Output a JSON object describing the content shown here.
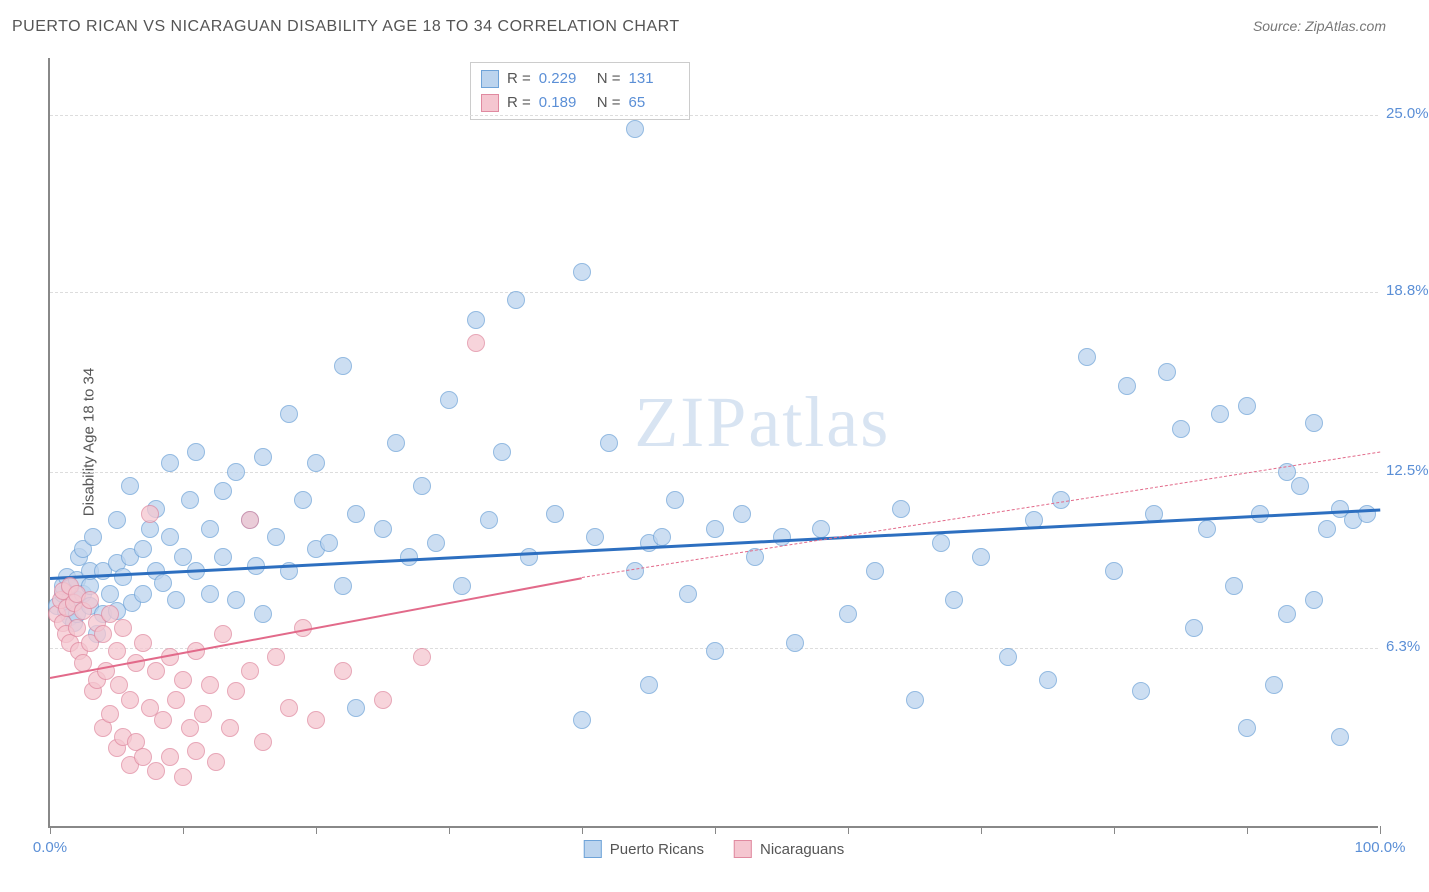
{
  "title": "PUERTO RICAN VS NICARAGUAN DISABILITY AGE 18 TO 34 CORRELATION CHART",
  "source_label": "Source:",
  "source_name": "ZipAtlas.com",
  "ylabel": "Disability Age 18 to 34",
  "watermark": "ZIPatlas",
  "chart": {
    "type": "scatter",
    "xlim": [
      0,
      100
    ],
    "ylim": [
      0,
      27
    ],
    "background_color": "#ffffff",
    "grid_color": "#dddddd",
    "axis_color": "#888888",
    "label_color": "#5b8fd6",
    "yticks": [
      {
        "v": 6.3,
        "label": "6.3%"
      },
      {
        "v": 12.5,
        "label": "12.5%"
      },
      {
        "v": 18.8,
        "label": "18.8%"
      },
      {
        "v": 25.0,
        "label": "25.0%"
      }
    ],
    "xticks": [
      0,
      10,
      20,
      30,
      40,
      50,
      60,
      70,
      80,
      90,
      100
    ],
    "xtick_labels": [
      {
        "v": 0,
        "label": "0.0%"
      },
      {
        "v": 100,
        "label": "100.0%"
      }
    ],
    "point_radius": 9,
    "series": [
      {
        "name": "Puerto Ricans",
        "fill": "#bcd4ee",
        "stroke": "#6fa3d8",
        "opacity": 0.75,
        "trend_color": "#2d6fc0",
        "trend_width": 2.5,
        "trend_solid": {
          "x1": 0,
          "y1": 8.8,
          "x2": 100,
          "y2": 11.2
        },
        "R": "0.229",
        "N": "131",
        "points": [
          [
            0.5,
            7.8
          ],
          [
            1,
            8.2
          ],
          [
            1,
            8.5
          ],
          [
            1.2,
            7.6
          ],
          [
            1.3,
            8.8
          ],
          [
            1.5,
            8.0
          ],
          [
            1.5,
            8.4
          ],
          [
            1.5,
            7.4
          ],
          [
            1.8,
            7.2
          ],
          [
            2,
            8.7
          ],
          [
            2,
            8.0
          ],
          [
            2,
            7.5
          ],
          [
            2.2,
            9.5
          ],
          [
            2.5,
            8.2
          ],
          [
            2.5,
            9.8
          ],
          [
            3,
            8.5
          ],
          [
            3,
            9.0
          ],
          [
            3,
            7.8
          ],
          [
            3.2,
            10.2
          ],
          [
            3.5,
            6.8
          ],
          [
            4,
            9.0
          ],
          [
            4,
            7.5
          ],
          [
            4.5,
            8.2
          ],
          [
            5,
            9.3
          ],
          [
            5,
            10.8
          ],
          [
            5,
            7.6
          ],
          [
            5.5,
            8.8
          ],
          [
            6,
            9.5
          ],
          [
            6,
            12.0
          ],
          [
            6.2,
            7.9
          ],
          [
            7,
            9.8
          ],
          [
            7,
            8.2
          ],
          [
            7.5,
            10.5
          ],
          [
            8,
            9.0
          ],
          [
            8,
            11.2
          ],
          [
            8.5,
            8.6
          ],
          [
            9,
            10.2
          ],
          [
            9,
            12.8
          ],
          [
            9.5,
            8.0
          ],
          [
            10,
            9.5
          ],
          [
            10.5,
            11.5
          ],
          [
            11,
            9.0
          ],
          [
            11,
            13.2
          ],
          [
            12,
            10.5
          ],
          [
            12,
            8.2
          ],
          [
            13,
            11.8
          ],
          [
            13,
            9.5
          ],
          [
            14,
            12.5
          ],
          [
            14,
            8.0
          ],
          [
            15,
            10.8
          ],
          [
            15.5,
            9.2
          ],
          [
            16,
            13.0
          ],
          [
            16,
            7.5
          ],
          [
            17,
            10.2
          ],
          [
            18,
            9.0
          ],
          [
            18,
            14.5
          ],
          [
            19,
            11.5
          ],
          [
            20,
            9.8
          ],
          [
            20,
            12.8
          ],
          [
            21,
            10.0
          ],
          [
            22,
            16.2
          ],
          [
            22,
            8.5
          ],
          [
            23,
            11.0
          ],
          [
            23,
            4.2
          ],
          [
            25,
            10.5
          ],
          [
            26,
            13.5
          ],
          [
            27,
            9.5
          ],
          [
            28,
            12.0
          ],
          [
            29,
            10.0
          ],
          [
            30,
            15.0
          ],
          [
            31,
            8.5
          ],
          [
            32,
            17.8
          ],
          [
            33,
            10.8
          ],
          [
            34,
            13.2
          ],
          [
            35,
            18.5
          ],
          [
            36,
            9.5
          ],
          [
            38,
            11.0
          ],
          [
            40,
            19.5
          ],
          [
            40,
            3.8
          ],
          [
            41,
            10.2
          ],
          [
            42,
            13.5
          ],
          [
            44,
            9.0
          ],
          [
            44,
            24.5
          ],
          [
            45,
            10.0
          ],
          [
            45,
            5.0
          ],
          [
            46,
            10.2
          ],
          [
            47,
            11.5
          ],
          [
            48,
            8.2
          ],
          [
            50,
            10.5
          ],
          [
            50,
            6.2
          ],
          [
            52,
            11.0
          ],
          [
            53,
            9.5
          ],
          [
            55,
            10.2
          ],
          [
            56,
            6.5
          ],
          [
            58,
            10.5
          ],
          [
            60,
            7.5
          ],
          [
            62,
            9.0
          ],
          [
            64,
            11.2
          ],
          [
            65,
            4.5
          ],
          [
            67,
            10.0
          ],
          [
            68,
            8.0
          ],
          [
            70,
            9.5
          ],
          [
            72,
            6.0
          ],
          [
            74,
            10.8
          ],
          [
            75,
            5.2
          ],
          [
            76,
            11.5
          ],
          [
            78,
            16.5
          ],
          [
            80,
            9.0
          ],
          [
            81,
            15.5
          ],
          [
            82,
            4.8
          ],
          [
            83,
            11.0
          ],
          [
            84,
            16.0
          ],
          [
            85,
            14.0
          ],
          [
            86,
            7.0
          ],
          [
            87,
            10.5
          ],
          [
            88,
            14.5
          ],
          [
            89,
            8.5
          ],
          [
            90,
            14.8
          ],
          [
            90,
            3.5
          ],
          [
            91,
            11.0
          ],
          [
            92,
            5.0
          ],
          [
            93,
            12.5
          ],
          [
            93,
            7.5
          ],
          [
            94,
            12.0
          ],
          [
            95,
            14.2
          ],
          [
            95,
            8.0
          ],
          [
            96,
            10.5
          ],
          [
            97,
            11.2
          ],
          [
            97,
            3.2
          ],
          [
            98,
            10.8
          ],
          [
            99,
            11.0
          ]
        ]
      },
      {
        "name": "Nicaraguans",
        "fill": "#f5c6d0",
        "stroke": "#e08aa0",
        "opacity": 0.75,
        "trend_color": "#e26a8a",
        "trend_width": 2,
        "trend_solid": {
          "x1": 0,
          "y1": 5.3,
          "x2": 40,
          "y2": 8.8
        },
        "trend_dashed": {
          "x1": 40,
          "y1": 8.8,
          "x2": 100,
          "y2": 13.2
        },
        "R": "0.189",
        "N": "65",
        "points": [
          [
            0.5,
            7.5
          ],
          [
            0.8,
            8.0
          ],
          [
            1,
            7.2
          ],
          [
            1,
            8.3
          ],
          [
            1.2,
            6.8
          ],
          [
            1.3,
            7.7
          ],
          [
            1.5,
            8.5
          ],
          [
            1.5,
            6.5
          ],
          [
            1.8,
            7.9
          ],
          [
            2,
            8.2
          ],
          [
            2,
            7.0
          ],
          [
            2.2,
            6.2
          ],
          [
            2.5,
            7.6
          ],
          [
            2.5,
            5.8
          ],
          [
            3,
            8.0
          ],
          [
            3,
            6.5
          ],
          [
            3.2,
            4.8
          ],
          [
            3.5,
            7.2
          ],
          [
            3.5,
            5.2
          ],
          [
            4,
            6.8
          ],
          [
            4,
            3.5
          ],
          [
            4.2,
            5.5
          ],
          [
            4.5,
            7.5
          ],
          [
            4.5,
            4.0
          ],
          [
            5,
            6.2
          ],
          [
            5,
            2.8
          ],
          [
            5.2,
            5.0
          ],
          [
            5.5,
            7.0
          ],
          [
            5.5,
            3.2
          ],
          [
            6,
            4.5
          ],
          [
            6,
            2.2
          ],
          [
            6.5,
            5.8
          ],
          [
            6.5,
            3.0
          ],
          [
            7,
            6.5
          ],
          [
            7,
            2.5
          ],
          [
            7.5,
            4.2
          ],
          [
            7.5,
            11.0
          ],
          [
            8,
            5.5
          ],
          [
            8,
            2.0
          ],
          [
            8.5,
            3.8
          ],
          [
            9,
            6.0
          ],
          [
            9,
            2.5
          ],
          [
            9.5,
            4.5
          ],
          [
            10,
            5.2
          ],
          [
            10,
            1.8
          ],
          [
            10.5,
            3.5
          ],
          [
            11,
            6.2
          ],
          [
            11,
            2.7
          ],
          [
            11.5,
            4.0
          ],
          [
            12,
            5.0
          ],
          [
            12.5,
            2.3
          ],
          [
            13,
            6.8
          ],
          [
            13.5,
            3.5
          ],
          [
            14,
            4.8
          ],
          [
            15,
            10.8
          ],
          [
            15,
            5.5
          ],
          [
            16,
            3.0
          ],
          [
            17,
            6.0
          ],
          [
            18,
            4.2
          ],
          [
            19,
            7.0
          ],
          [
            20,
            3.8
          ],
          [
            22,
            5.5
          ],
          [
            25,
            4.5
          ],
          [
            28,
            6.0
          ],
          [
            32,
            17.0
          ]
        ]
      }
    ]
  },
  "legend_corr": {
    "rows": [
      {
        "color_fill": "#bcd4ee",
        "color_stroke": "#6fa3d8",
        "R_label": "R =",
        "R_val": "0.229",
        "N_label": "N =",
        "N_val": "131"
      },
      {
        "color_fill": "#f5c6d0",
        "color_stroke": "#e08aa0",
        "R_label": "R =",
        "R_val": "0.189",
        "N_label": "N =",
        "N_val": "65"
      }
    ]
  },
  "legend_bottom": [
    {
      "fill": "#bcd4ee",
      "stroke": "#6fa3d8",
      "label": "Puerto Ricans"
    },
    {
      "fill": "#f5c6d0",
      "stroke": "#e08aa0",
      "label": "Nicaraguans"
    }
  ]
}
